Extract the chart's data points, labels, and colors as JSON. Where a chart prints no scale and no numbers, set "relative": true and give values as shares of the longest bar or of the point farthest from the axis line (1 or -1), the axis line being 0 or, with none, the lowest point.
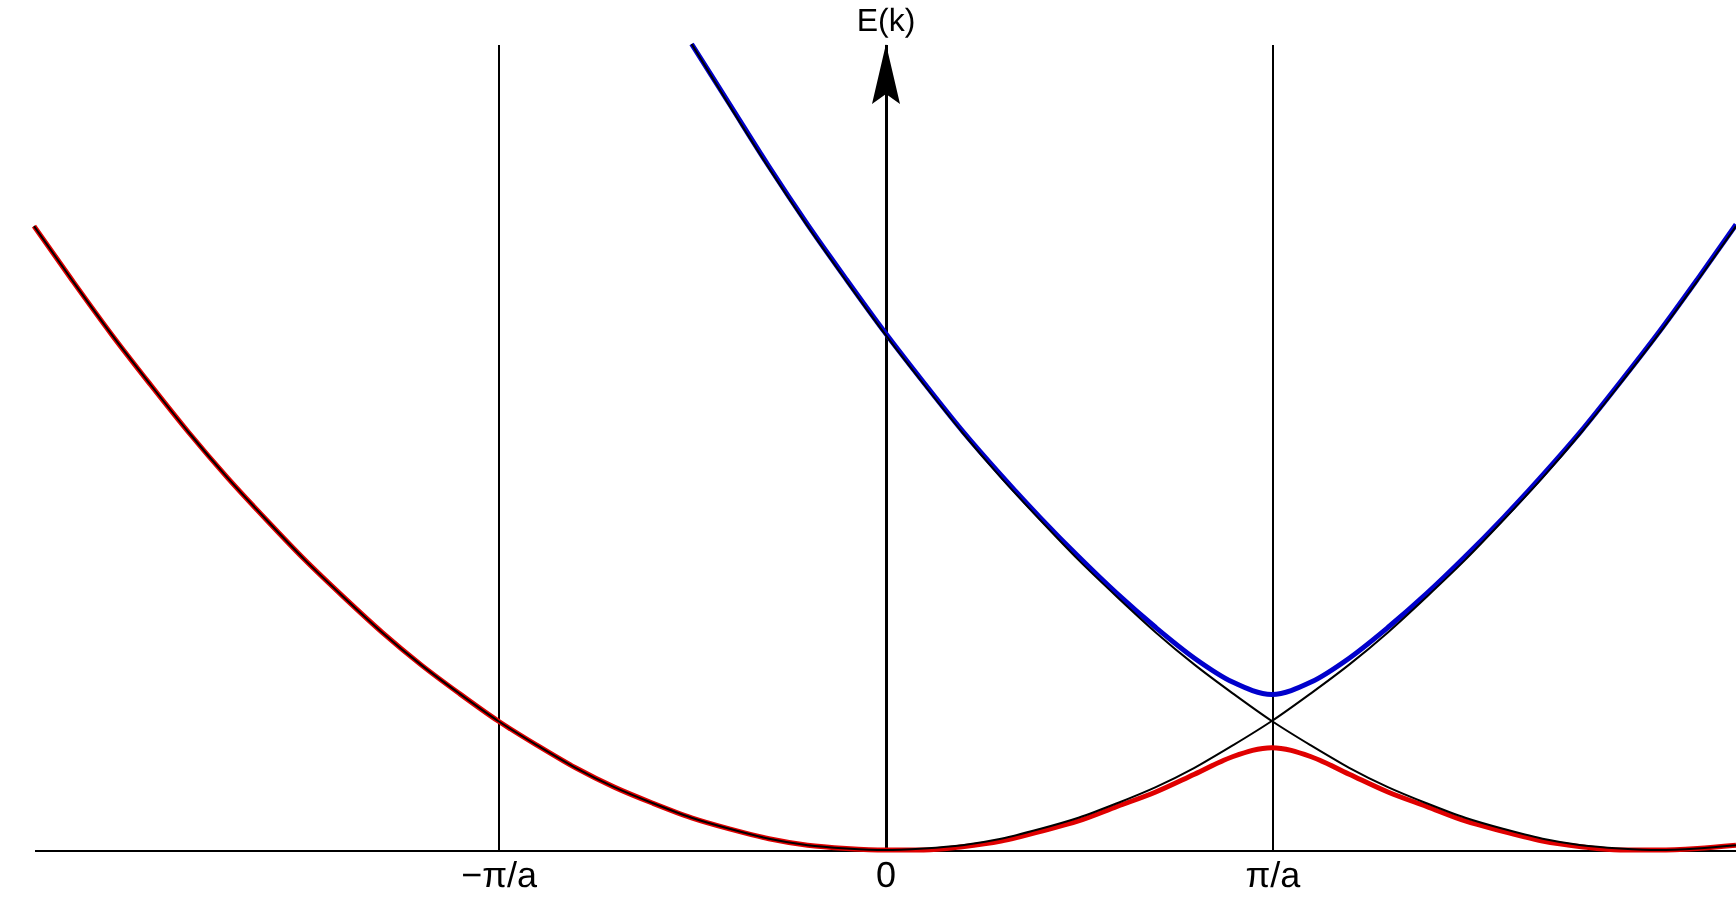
{
  "chart_data": {
    "type": "line",
    "relative": true,
    "ylabel": "E(k)",
    "categories": [
      null,
      null,
      null,
      null,
      null,
      null,
      null,
      null,
      null,
      null,
      null,
      null,
      "−π/a",
      null,
      null,
      null,
      null,
      null,
      null,
      null,
      null,
      null,
      "0",
      null,
      null,
      null,
      null,
      null,
      null,
      null,
      null,
      null,
      "π/a",
      null,
      null,
      null,
      null,
      null,
      null,
      null,
      null,
      null,
      null,
      null,
      null
    ],
    "grid": "x",
    "series": [
      {
        "color": "#e00000",
        "values": [
          0.774,
          0.706,
          0.64,
          0.578,
          0.518,
          0.462,
          0.41,
          0.36,
          0.314,
          0.27,
          0.23,
          0.194,
          0.16,
          0.13,
          0.102,
          0.078,
          0.058,
          0.04,
          0.026,
          0.014,
          0.006,
          0.002,
          0,
          0,
          0.004,
          0.011,
          0.023,
          0.036,
          0.054,
          0.072,
          0.094,
          0.116,
          0.127,
          0.116,
          0.094,
          0.072,
          0.054,
          0.036,
          0.023,
          0.011,
          0.004,
          0,
          0,
          0.002,
          0.006
        ]
      },
      {
        "color": "#0000cc",
        "values": [
          null,
          null,
          null,
          null,
          null,
          null,
          null,
          null,
          null,
          null,
          null,
          null,
          null,
          null,
          null,
          null,
          null,
          1,
          0.924,
          0.848,
          0.776,
          0.708,
          0.642,
          0.58,
          0.52,
          0.465,
          0.413,
          0.364,
          0.318,
          0.276,
          0.238,
          0.208,
          0.193,
          0.208,
          0.238,
          0.276,
          0.318,
          0.364,
          0.413,
          0.465,
          0.52,
          0.58,
          0.642,
          0.708,
          0.776
        ]
      },
      {
        "color": "#000000",
        "values": [
          0.774,
          0.706,
          0.64,
          0.578,
          0.518,
          0.462,
          0.41,
          0.36,
          0.314,
          0.27,
          0.23,
          0.194,
          0.16,
          0.13,
          0.102,
          0.078,
          0.058,
          0.04,
          0.026,
          0.014,
          0.006,
          0.002,
          0,
          0.002,
          0.006,
          0.014,
          0.026,
          0.04,
          0.058,
          0.078,
          0.102,
          0.13,
          0.16,
          0.194,
          0.23,
          0.27,
          0.314,
          0.36,
          0.41,
          0.462,
          0.518,
          0.578,
          0.64,
          0.706,
          0.774
        ]
      },
      {
        "color": "#000000",
        "values": [
          null,
          null,
          null,
          null,
          null,
          null,
          null,
          null,
          null,
          null,
          null,
          null,
          null,
          null,
          null,
          null,
          null,
          1,
          0.922,
          0.846,
          0.774,
          0.706,
          0.64,
          0.578,
          0.518,
          0.462,
          0.41,
          0.36,
          0.314,
          0.27,
          0.23,
          0.194,
          0.16,
          0.13,
          0.102,
          0.078,
          0.058,
          0.04,
          0.026,
          0.014,
          0.006,
          0.002,
          0,
          0.002,
          0.006
        ]
      }
    ]
  }
}
